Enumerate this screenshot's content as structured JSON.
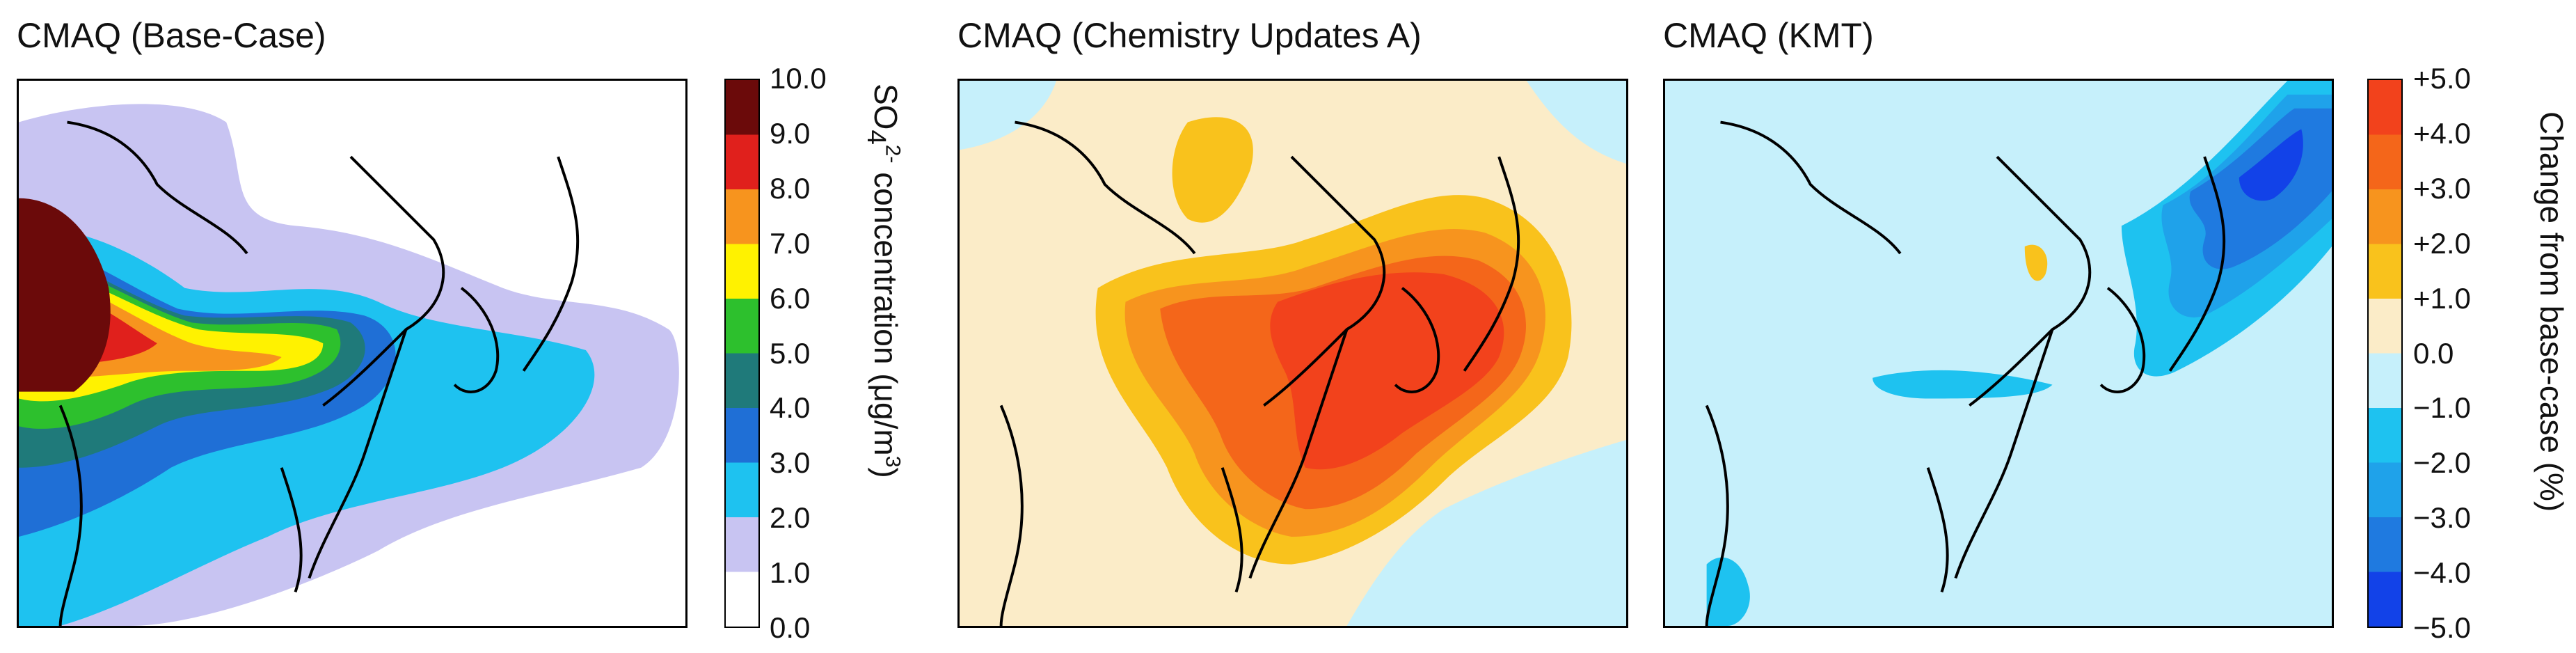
{
  "panels": [
    {
      "title": "CMAQ (Base-Case)"
    },
    {
      "title": "CMAQ (Chemistry Updates A)"
    },
    {
      "title": "CMAQ (KMT)"
    }
  ],
  "colorbar_concentration": {
    "label_prefix": "SO",
    "label_sub": "4",
    "label_sup": "2-",
    "label_rest": " concentration (μg/m",
    "label_sup2": "3",
    "label_end": ")",
    "ticks": [
      "10.0",
      "9.0",
      "8.0",
      "7.0",
      "6.0",
      "5.0",
      "4.0",
      "3.0",
      "2.0",
      "1.0",
      "0.0"
    ],
    "colors": [
      "#6b0a0a",
      "#e0201c",
      "#f7941e",
      "#fff200",
      "#2dc02d",
      "#1f7a7a",
      "#1f6fd6",
      "#1ec2f0",
      "#c8c4f2",
      "#ffffff"
    ]
  },
  "colorbar_change": {
    "label": "Change from base-case (%)",
    "ticks": [
      "+5.0",
      "+4.0",
      "+3.0",
      "+2.0",
      "+1.0",
      "0.0",
      "−1.0",
      "−2.0",
      "−3.0",
      "−4.0",
      "−5.0"
    ],
    "colors": [
      "#f2421c",
      "#f4661a",
      "#f7941e",
      "#f9c21c",
      "#fbecc8",
      "#c6f0fb",
      "#1ec2f0",
      "#1fa2ea",
      "#1f7ae0",
      "#1242e8"
    ]
  }
}
